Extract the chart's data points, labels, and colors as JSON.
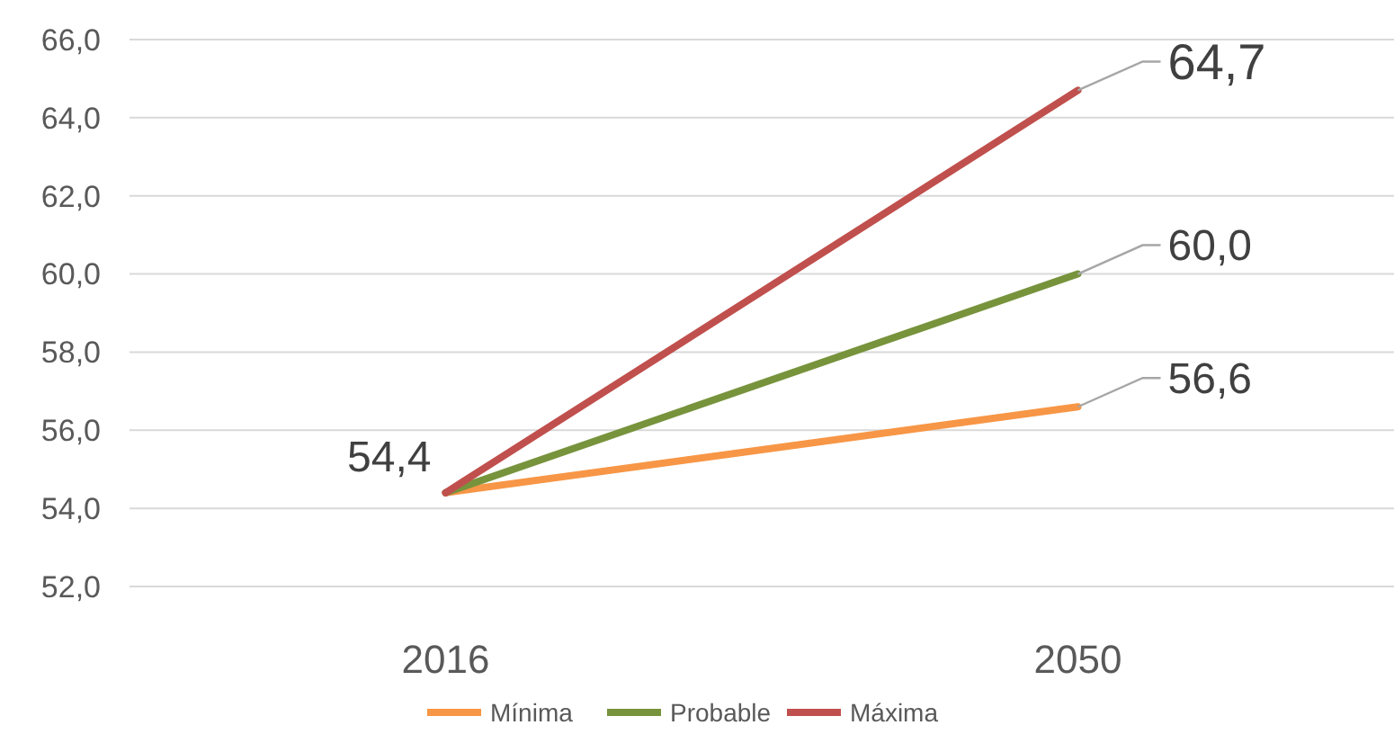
{
  "chart_data": {
    "type": "line",
    "categories": [
      "2016",
      "2050"
    ],
    "series": [
      {
        "name": "Mínima",
        "color": "#f79646",
        "values": [
          54.4,
          56.6
        ],
        "value_labels": [
          "54,4",
          "56,6"
        ]
      },
      {
        "name": "Probable",
        "color": "#77933c",
        "values": [
          54.4,
          60.0
        ],
        "value_labels": [
          null,
          "60,0"
        ]
      },
      {
        "name": "Máxima",
        "color": "#c0504d",
        "values": [
          54.4,
          64.7
        ],
        "value_labels": [
          null,
          "64,7"
        ]
      }
    ],
    "ylim": [
      52,
      66
    ],
    "yticks": [
      {
        "value": 52,
        "label": "52,0"
      },
      {
        "value": 54,
        "label": "54,0"
      },
      {
        "value": 56,
        "label": "56,0"
      },
      {
        "value": 58,
        "label": "58,0"
      },
      {
        "value": 60,
        "label": "60,0"
      },
      {
        "value": 62,
        "label": "62,0"
      },
      {
        "value": 64,
        "label": "64,0"
      },
      {
        "value": 66,
        "label": "66,0"
      }
    ],
    "grid": "y",
    "legend": "bottom",
    "line_style": "solid"
  }
}
